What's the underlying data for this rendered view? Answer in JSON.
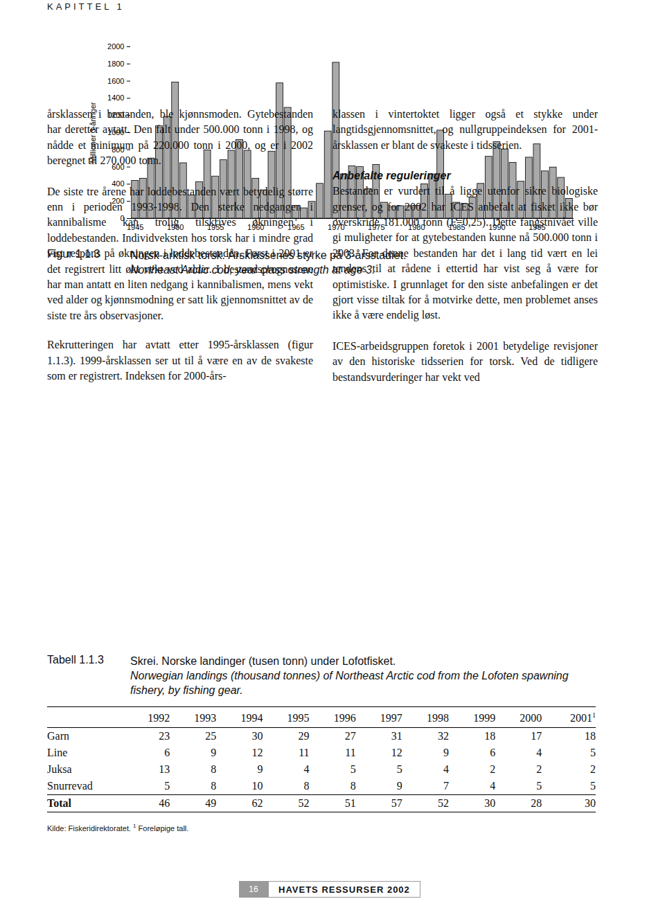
{
  "header": "KAPITTEL 1",
  "chart_data": {
    "type": "bar",
    "ylabel": "Millioner 3-åringer",
    "categories": [
      1945,
      1946,
      1947,
      1948,
      1949,
      1950,
      1951,
      1952,
      1953,
      1954,
      1955,
      1956,
      1957,
      1958,
      1959,
      1960,
      1961,
      1962,
      1963,
      1964,
      1965,
      1966,
      1967,
      1968,
      1969,
      1970,
      1971,
      1972,
      1973,
      1974,
      1975,
      1976,
      1977,
      1978,
      1979,
      1980,
      1981,
      1982,
      1983,
      1984,
      1985,
      1986,
      1987,
      1988,
      1989,
      1990,
      1991,
      1992,
      1993,
      1994,
      1995,
      1996,
      1997,
      1998,
      1999
    ],
    "values": [
      440,
      465,
      700,
      1075,
      1185,
      1585,
      645,
      270,
      425,
      795,
      490,
      680,
      790,
      915,
      790,
      465,
      330,
      780,
      1575,
      1290,
      150,
      120,
      195,
      405,
      1015,
      1815,
      515,
      610,
      600,
      345,
      625,
      185,
      135,
      145,
      145,
      150,
      400,
      515,
      1025,
      280,
      185,
      170,
      245,
      405,
      720,
      890,
      805,
      650,
      430,
      710,
      865,
      550,
      595,
      475,
      230
    ],
    "color": "#aaaaaa",
    "xticks": [
      1945,
      1950,
      1955,
      1960,
      1965,
      1970,
      1975,
      1980,
      1985,
      1990,
      1995
    ],
    "ylim": [
      0,
      2000
    ],
    "yticks": [
      0,
      200,
      400,
      600,
      800,
      1000,
      1200,
      1400,
      1600,
      1800,
      2000
    ],
    "grid": false
  },
  "figure": {
    "number": "Figur 1.1.3",
    "caption": "Norsk-arktisk torsk. Årsklassenes styrke på 3-årsstadiet.",
    "caption_en": "Northeast Arctic cod; year class strength at age 3."
  },
  "left_column": [
    "årsklassen i bestanden, ble kjønnsmoden. Gytebestanden har deretter avtatt. Den falt under 500.000 tonn i 1998, og nådde et minimum på 220.000 tonn i 2000, og er i 2002 beregnet til 270.000 tonn.",
    "De siste tre årene har loddebestanden vært betydelig større enn i perioden 1993-1998. Den sterke nedgangen i kannibalisme kan trolig tilskrives økningen i loddebestanden. Individveksten hos torsk har i mindre grad vist respons på økningen i loddebestanden. Først i 2001 er det registrert litt økt vekt ved alder. I bestandsprognosene har man antatt en liten nedgang i kannibalismen, mens vekt ved alder og kjønnsmodning er satt lik gjennomsnittet av de siste tre års observasjoner.",
    "Rekrutteringen har avtatt etter 1995-årsklassen (figur 1.1.3). 1999-årsklassen ser ut til å være en av de svakeste som er registrert. Indeksen for 2000-års-"
  ],
  "right_column": {
    "intro": "klassen i vintertoktet ligger også et stykke under langtidsgjennomsnittet, og nullgruppeindeksen for 2001-årsklassen er blant de svakeste i tidsserien.",
    "heading": "Anbefalte reguleringer",
    "paragraphs": [
      "Bestanden er vurdert til å ligge utenfor sikre biologiske grenser, og for 2002 har ICES anbefalt at fisket ikke bør overskride 181.000 tonn (F=0,25). Dette fangstnivået ville gi muligheter for at gytebestanden kunne nå 500.000 tonn i 2003. For denne bestanden har det i lang tid vært en lei tendens til at rådene i ettertid har vist seg å være for optimistiske. I grunnlaget for den siste anbefalingen er det gjort visse tiltak for å motvirke dette, men problemet anses ikke å være endelig løst.",
      "ICES-arbeidsgruppen foretok i 2001 betydelige revisjoner av den historiske tidsserien for torsk. Ved de tidligere bestandsvurderinger har vekt ved"
    ]
  },
  "table": {
    "number": "Tabell 1.1.3",
    "caption": "Skrei. Norske landinger (tusen tonn) under Lofotfisket.",
    "caption_en": "Norwegian landings (thousand tonnes) of Northeast Arctic cod from the Lofoten spawning fishery, by fishing gear.",
    "columns": [
      "1992",
      "1993",
      "1994",
      "1995",
      "1996",
      "1997",
      "1998",
      "1999",
      "2000",
      "2001"
    ],
    "column_notes": [
      null,
      null,
      null,
      null,
      null,
      null,
      null,
      null,
      null,
      "1"
    ],
    "rows": [
      [
        "Garn",
        23,
        25,
        30,
        29,
        27,
        31,
        32,
        18,
        17,
        18
      ],
      [
        "Line",
        6,
        9,
        12,
        11,
        11,
        12,
        9,
        6,
        4,
        5
      ],
      [
        "Juksa",
        13,
        8,
        9,
        4,
        5,
        5,
        4,
        2,
        2,
        2
      ],
      [
        "Snurrevad",
        5,
        8,
        10,
        8,
        8,
        9,
        7,
        4,
        5,
        5
      ]
    ],
    "total": [
      "Total",
      46,
      49,
      62,
      52,
      51,
      57,
      52,
      30,
      28,
      30
    ],
    "source": "Kilde: Fiskeridirektoratet.",
    "note_mark": "1",
    "note": "Foreløpige tall."
  },
  "footer": {
    "page": "16",
    "title": "HAVETS RESSURSER 2002"
  }
}
